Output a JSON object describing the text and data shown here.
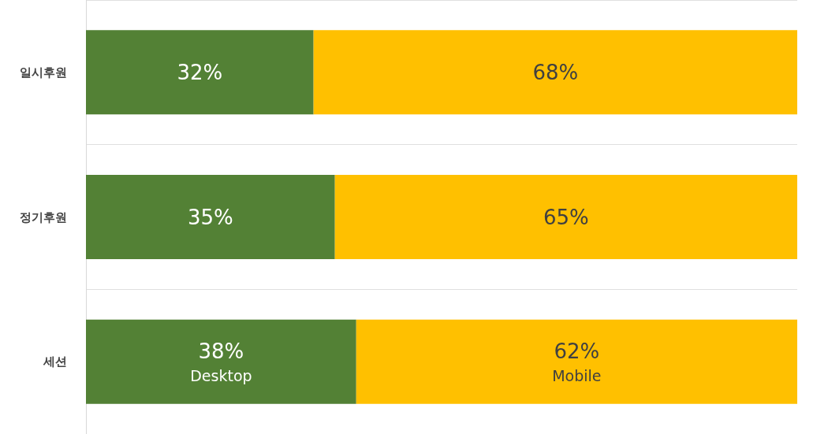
{
  "chart_data": {
    "type": "bar",
    "orientation": "horizontal",
    "stacked": true,
    "categories": [
      "일시후원",
      "정기후원",
      "세션"
    ],
    "series": [
      {
        "name": "Desktop",
        "color": "#538135",
        "values": [
          32,
          35,
          38
        ],
        "value_labels": [
          "32%",
          "35%",
          "38%"
        ]
      },
      {
        "name": "Mobile",
        "color": "#ffc000",
        "values": [
          68,
          65,
          62
        ],
        "value_labels": [
          "68%",
          "65%",
          "62%"
        ]
      }
    ],
    "grid": "y",
    "legend": false
  }
}
